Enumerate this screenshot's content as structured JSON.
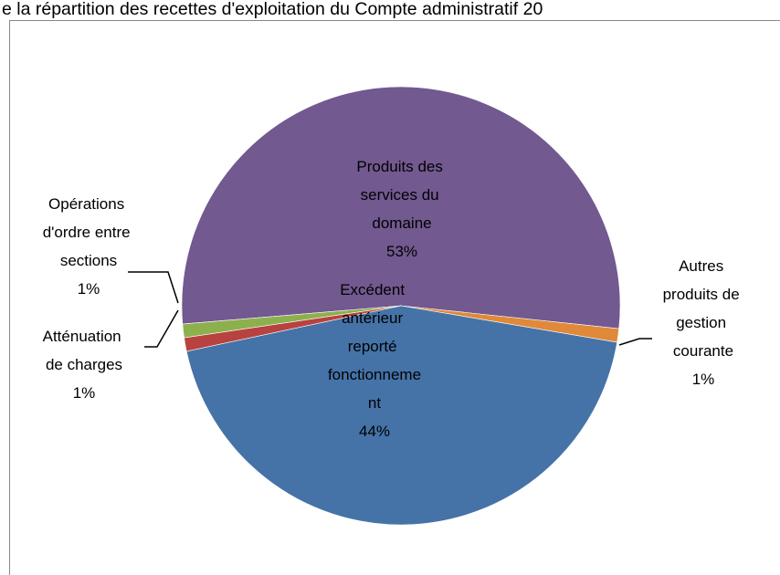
{
  "chart_data": {
    "type": "pie",
    "title": "e la répartition des recettes d'exploitation du Compte administratif 20",
    "categories": [
      "Produits des services du domaine",
      "Autres produits de gestion courante",
      "Excédent antérieur reporté fonctionnement",
      "Atténuation de charges",
      "Opérations d'ordre entre sections"
    ],
    "values": [
      53,
      1,
      44,
      1,
      1
    ],
    "value_labels": [
      "53%",
      "1%",
      "44%",
      "1%",
      "1%"
    ],
    "colors": [
      "#725990",
      "#e0893a",
      "#4573a7",
      "#b8423f",
      "#8db04f"
    ]
  }
}
